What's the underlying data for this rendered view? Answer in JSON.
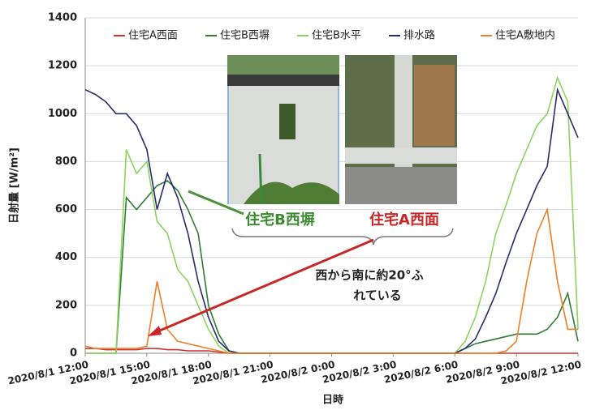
{
  "chart_data": {
    "type": "line",
    "y_label": "日射量 [W/m²]",
    "x_label": "日時",
    "x": [
      "2020/8/1 12:00",
      "2020/8/1 12:30",
      "2020/8/1 13:00",
      "2020/8/1 13:30",
      "2020/8/1 14:00",
      "2020/8/1 14:30",
      "2020/8/1 15:00",
      "2020/8/1 15:30",
      "2020/8/1 16:00",
      "2020/8/1 16:30",
      "2020/8/1 17:00",
      "2020/8/1 17:30",
      "2020/8/1 18:00",
      "2020/8/1 18:30",
      "2020/8/1 19:00",
      "2020/8/1 19:30",
      "2020/8/1 20:00",
      "2020/8/1 20:30",
      "2020/8/1 21:00",
      "2020/8/1 21:30",
      "2020/8/1 22:00",
      "2020/8/1 22:30",
      "2020/8/1 23:00",
      "2020/8/1 23:30",
      "2020/8/2 0:00",
      "2020/8/2 0:30",
      "2020/8/2 1:00",
      "2020/8/2 1:30",
      "2020/8/2 2:00",
      "2020/8/2 2:30",
      "2020/8/2 3:00",
      "2020/8/2 3:30",
      "2020/8/2 4:00",
      "2020/8/2 4:30",
      "2020/8/2 5:00",
      "2020/8/2 5:30",
      "2020/8/2 6:00",
      "2020/8/2 6:30",
      "2020/8/2 7:00",
      "2020/8/2 7:30",
      "2020/8/2 8:00",
      "2020/8/2 8:30",
      "2020/8/2 9:00",
      "2020/8/2 9:30",
      "2020/8/2 10:00",
      "2020/8/2 10:30",
      "2020/8/2 11:00",
      "2020/8/2 11:30",
      "2020/8/2 12:00"
    ],
    "series": [
      {
        "name": "住宅A西面",
        "color": "#d0312d",
        "values": [
          20,
          20,
          15,
          15,
          15,
          15,
          20,
          20,
          15,
          15,
          10,
          10,
          10,
          5,
          0,
          0,
          0,
          0,
          0,
          0,
          0,
          0,
          0,
          0,
          0,
          0,
          0,
          0,
          0,
          0,
          0,
          0,
          0,
          0,
          0,
          0,
          0,
          0,
          0,
          0,
          0,
          0,
          0,
          0,
          0,
          0,
          0,
          0,
          0
        ]
      },
      {
        "name": "住宅B西塀",
        "color": "#2e7d32",
        "values": [
          0,
          0,
          0,
          0,
          650,
          600,
          650,
          700,
          720,
          680,
          600,
          500,
          200,
          80,
          10,
          0,
          0,
          0,
          0,
          0,
          0,
          0,
          0,
          0,
          0,
          0,
          0,
          0,
          0,
          0,
          0,
          0,
          0,
          0,
          0,
          0,
          0,
          20,
          40,
          50,
          60,
          70,
          80,
          80,
          80,
          100,
          150,
          250,
          50
        ]
      },
      {
        "name": "住宅B水平",
        "color": "#8dd35f",
        "values": [
          0,
          0,
          0,
          0,
          850,
          750,
          800,
          550,
          500,
          350,
          300,
          200,
          100,
          30,
          0,
          0,
          0,
          0,
          0,
          0,
          0,
          0,
          0,
          0,
          0,
          0,
          0,
          0,
          0,
          0,
          0,
          0,
          0,
          0,
          0,
          0,
          0,
          50,
          150,
          300,
          500,
          620,
          750,
          850,
          950,
          1000,
          1150,
          1050,
          100
        ]
      },
      {
        "name": "排水路",
        "color": "#2a2a6e",
        "values": [
          1100,
          1080,
          1050,
          1000,
          1000,
          950,
          850,
          600,
          750,
          650,
          500,
          300,
          150,
          50,
          10,
          0,
          0,
          0,
          0,
          0,
          0,
          0,
          0,
          0,
          0,
          0,
          0,
          0,
          0,
          0,
          0,
          0,
          0,
          0,
          0,
          0,
          0,
          20,
          60,
          150,
          250,
          380,
          500,
          600,
          700,
          780,
          1100,
          1000,
          900
        ]
      },
      {
        "name": "住宅A敷地内",
        "color": "#f07f2a",
        "values": [
          30,
          20,
          20,
          20,
          20,
          20,
          30,
          300,
          100,
          50,
          40,
          30,
          20,
          10,
          0,
          0,
          0,
          0,
          0,
          0,
          0,
          0,
          0,
          0,
          0,
          0,
          0,
          0,
          0,
          0,
          0,
          0,
          0,
          0,
          0,
          0,
          0,
          0,
          0,
          0,
          0,
          10,
          50,
          300,
          500,
          600,
          300,
          100,
          100
        ]
      }
    ],
    "xlim": [
      "2020/8/1 12:00",
      "2020/8/2 12:00"
    ],
    "xticks": [
      "2020/8/1 12:00",
      "2020/8/1 15:00",
      "2020/8/1 18:00",
      "2020/8/1 21:00",
      "2020/8/2 0:00",
      "2020/8/2 3:00",
      "2020/8/2 6:00",
      "2020/8/2 9:00",
      "2020/8/2 12:00"
    ],
    "ylim": [
      0,
      1400
    ],
    "yticks": [
      0,
      200,
      400,
      600,
      800,
      1000,
      1200,
      1400
    ],
    "grid": true,
    "legend": "top",
    "annotations": {
      "wall_b": "住宅B西塀",
      "face_a": "住宅A西面",
      "note": [
        "西から南に約20°ふ",
        "れている"
      ]
    }
  }
}
